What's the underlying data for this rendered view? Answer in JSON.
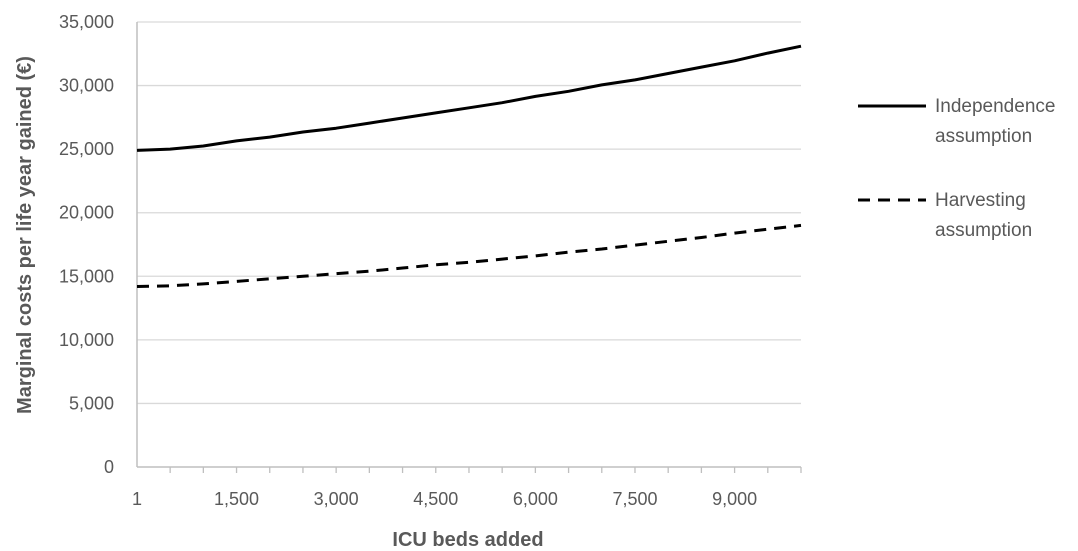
{
  "chart_data": {
    "type": "line",
    "title": "",
    "xlabel": "ICU beds added",
    "ylabel": "Marginal costs per life year gained (€)",
    "xlim": [
      1,
      10000
    ],
    "ylim": [
      0,
      35000
    ],
    "x_tick_labels": [
      "1",
      "1,500",
      "3,000",
      "4,500",
      "6,000",
      "7,500",
      "9,000"
    ],
    "y_tick_labels": [
      "0",
      "5,000",
      "10,000",
      "15,000",
      "20,000",
      "25,000",
      "30,000",
      "35,000"
    ],
    "grid": "horizontal",
    "legend_position": "right",
    "series": [
      {
        "name": "Independence assumption",
        "style": "solid",
        "color": "#000000",
        "x": [
          1,
          500,
          1000,
          1500,
          2000,
          2500,
          3000,
          3500,
          4000,
          4500,
          5000,
          5500,
          6000,
          6500,
          7000,
          7500,
          8000,
          8500,
          9000,
          9500,
          10000
        ],
        "y": [
          24900,
          25000,
          25250,
          25650,
          25950,
          26350,
          26650,
          27050,
          27450,
          27850,
          28250,
          28650,
          29150,
          29550,
          30050,
          30450,
          30950,
          31450,
          31950,
          32550,
          33100
        ]
      },
      {
        "name": "Harvesting assumption",
        "style": "dashed",
        "color": "#000000",
        "x": [
          1,
          500,
          1000,
          1500,
          2000,
          2500,
          3000,
          3500,
          4000,
          4500,
          5000,
          5500,
          6000,
          6500,
          7000,
          7500,
          8000,
          8500,
          9000,
          9500,
          10000
        ],
        "y": [
          14200,
          14250,
          14400,
          14600,
          14800,
          15000,
          15200,
          15400,
          15650,
          15900,
          16100,
          16350,
          16600,
          16900,
          17150,
          17450,
          17750,
          18050,
          18400,
          18700,
          19000
        ]
      }
    ],
    "legend": [
      {
        "line1": "Independence",
        "line2": "assumption",
        "style": "solid"
      },
      {
        "line1": "Harvesting",
        "line2": "assumption",
        "style": "dashed"
      }
    ],
    "colors": {
      "grid": "#d9d9d9",
      "axis": "#bfbfbf",
      "text": "#595959",
      "line": "#000000"
    }
  }
}
